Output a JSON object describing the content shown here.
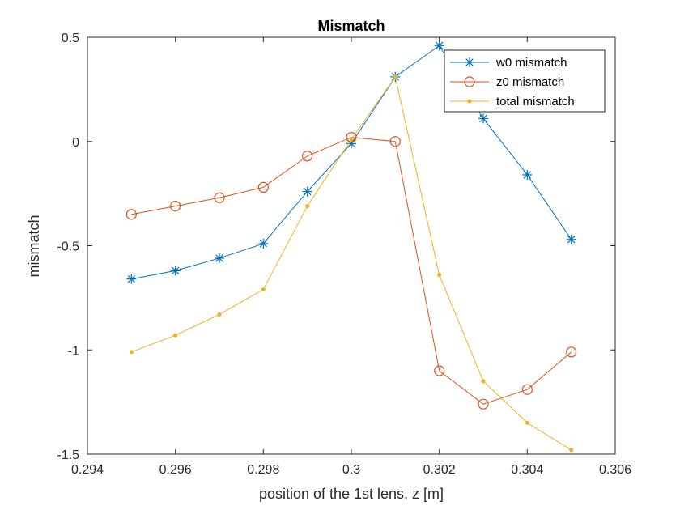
{
  "chart_data": {
    "type": "line",
    "title": "Mismatch",
    "xlabel": "position of the 1st lens, z [m]",
    "ylabel": "mismatch",
    "xlim": [
      0.294,
      0.306
    ],
    "ylim": [
      -1.5,
      0.5
    ],
    "xticks": [
      "0.294",
      "0.296",
      "0.298",
      "0.3",
      "0.302",
      "0.304",
      "0.306"
    ],
    "xtick_values": [
      0.294,
      0.296,
      0.298,
      0.3,
      0.302,
      0.304,
      0.306
    ],
    "yticks": [
      "0.5",
      "0",
      "-0.5",
      "-1",
      "-1.5"
    ],
    "ytick_values": [
      0.5,
      0,
      -0.5,
      -1,
      -1.5
    ],
    "grid": false,
    "legend_position": "top-right",
    "x": [
      0.295,
      0.296,
      0.297,
      0.298,
      0.299,
      0.3,
      0.301,
      0.302,
      0.303,
      0.304,
      0.305
    ],
    "series": [
      {
        "name": "w0 mismatch",
        "color": "#0072BD",
        "marker": "asterisk",
        "values": [
          -0.66,
          -0.62,
          -0.56,
          -0.49,
          -0.24,
          -0.01,
          0.31,
          0.46,
          0.11,
          -0.16,
          -0.47
        ]
      },
      {
        "name": "z0 mismatch",
        "color": "#D95319",
        "marker": "circle",
        "values": [
          -0.35,
          -0.31,
          -0.27,
          -0.22,
          -0.07,
          0.02,
          0.0,
          -1.1,
          -1.26,
          -1.19,
          -1.01
        ]
      },
      {
        "name": "total mismatch",
        "color": "#EDB120",
        "marker": "dot",
        "values": [
          -1.01,
          -0.93,
          -0.83,
          -0.71,
          -0.31,
          0.01,
          0.31,
          -0.64,
          -1.15,
          -1.35,
          -1.48
        ]
      }
    ]
  }
}
